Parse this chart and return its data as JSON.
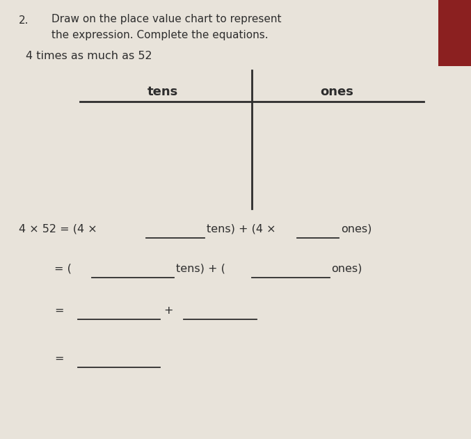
{
  "bg_color": "#c8bfb0",
  "paper_color": "#e8e3da",
  "font_color": "#2d2d2d",
  "line_color": "#2d2d2d",
  "number_label": "2.",
  "instruction_line1": "Draw on the place value chart to represent",
  "instruction_line2": "the expression. Complete the equations.",
  "expression_label": "4 times as much as 52",
  "chart_header_left": "tens",
  "chart_header_right": "ones",
  "figsize": [
    6.77,
    6.31
  ],
  "dpi": 100
}
